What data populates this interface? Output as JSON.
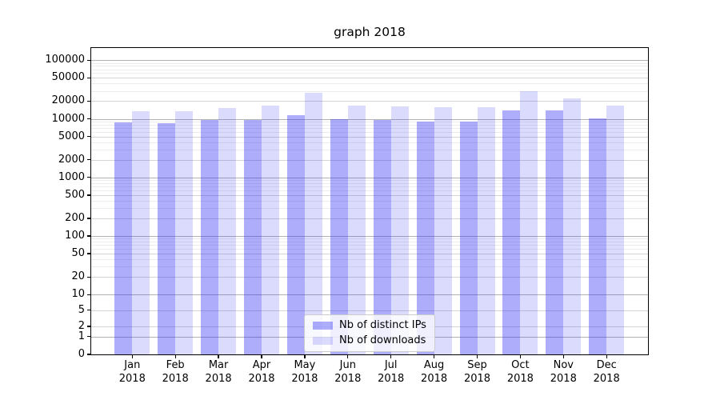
{
  "figure": {
    "title": "graph 2018"
  },
  "chart_data": {
    "type": "bar",
    "title": "graph 2018",
    "yscale": "log-with-zero",
    "grid": "major-and-minor",
    "legend_position": "lower center",
    "categories": [
      "Jan 2018",
      "Feb 2018",
      "Mar 2018",
      "Apr 2018",
      "May 2018",
      "Jun 2018",
      "Jul 2018",
      "Aug 2018",
      "Sep 2018",
      "Oct 2018",
      "Nov 2018",
      "Dec 2018"
    ],
    "series": [
      {
        "name": "Nb of distinct IPs",
        "color": "rgba(40,40,245,0.38)",
        "values": [
          8600,
          8300,
          9500,
          9400,
          11400,
          9900,
          9500,
          9000,
          9000,
          14100,
          14100,
          10300
        ]
      },
      {
        "name": "Nb of downloads",
        "color": "rgba(40,40,245,0.17)",
        "values": [
          13400,
          13300,
          15300,
          16600,
          28100,
          17000,
          16200,
          15600,
          15600,
          29900,
          22200,
          16600
        ]
      }
    ],
    "y_tick_labels": [
      "100000",
      "50000",
      "20000",
      "10000",
      "5000",
      "2000",
      "1000",
      "500",
      "200",
      "100",
      "50",
      "20",
      "10",
      "5",
      "2",
      "1",
      "0"
    ],
    "ylim": [
      0,
      150000
    ]
  },
  "colors": {
    "grid_power10": "#b2b2b2",
    "grid_sub": "#d4d4d4",
    "grid_minor": "#ececec",
    "axis": "#000000",
    "legend_border": "#cccccc"
  }
}
